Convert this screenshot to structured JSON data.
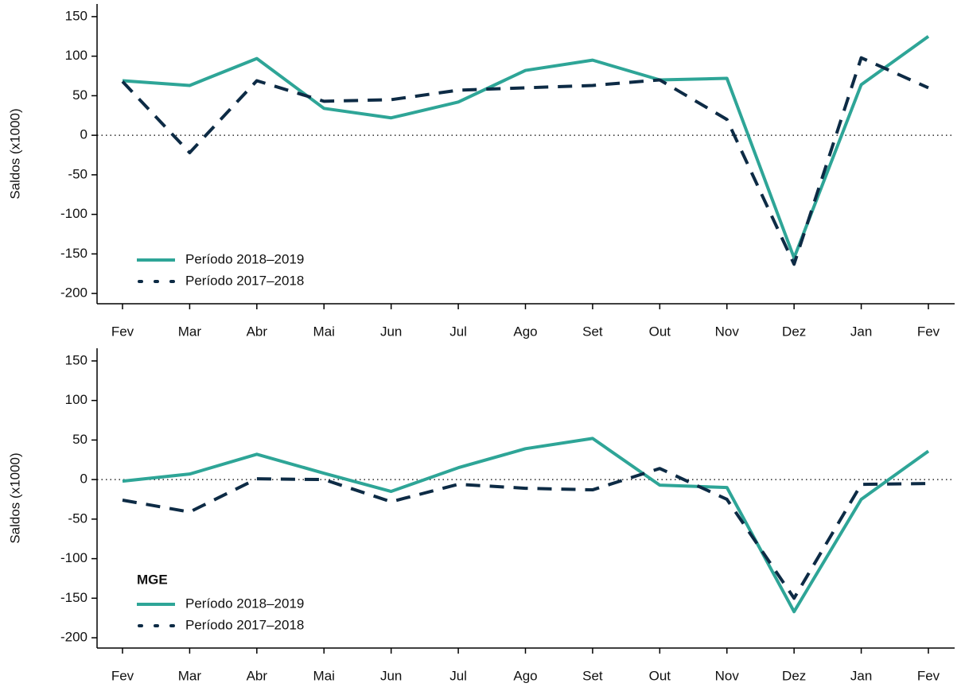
{
  "chart_data": [
    {
      "type": "line",
      "ylabel": "Saldos (x1000)",
      "categories": [
        "Fev",
        "Mar",
        "Abr",
        "Mai",
        "Jun",
        "Jul",
        "Ago",
        "Set",
        "Out",
        "Nov",
        "Dez",
        "Jan",
        "Fev"
      ],
      "series": [
        {
          "name": "Período 2018–2019",
          "color": "#2ea597",
          "style": "solid",
          "values": [
            69,
            63,
            97,
            34,
            22,
            42,
            82,
            95,
            70,
            72,
            -155,
            64,
            125
          ]
        },
        {
          "name": "Período 2017–2018",
          "color": "#0d2b45",
          "style": "dashed",
          "values": [
            68,
            -22,
            69,
            43,
            45,
            57,
            60,
            63,
            70,
            20,
            -163,
            98,
            60
          ]
        }
      ],
      "ylim": [
        -213,
        166
      ],
      "yticks": [
        -200,
        -150,
        -100,
        -50,
        0,
        50,
        100,
        150
      ],
      "zero_line": true
    },
    {
      "type": "line",
      "ylabel": "Saldos (x1000)",
      "legend_title": "MGE",
      "categories": [
        "Fev",
        "Mar",
        "Abr",
        "Mai",
        "Jun",
        "Jul",
        "Ago",
        "Set",
        "Out",
        "Nov",
        "Dez",
        "Jan",
        "Fev"
      ],
      "series": [
        {
          "name": "Período 2018–2019",
          "color": "#2ea597",
          "style": "solid",
          "values": [
            -2,
            7,
            32,
            8,
            -15,
            15,
            39,
            52,
            -7,
            -10,
            -167,
            -25,
            36
          ]
        },
        {
          "name": "Período 2017–2018",
          "color": "#0d2b45",
          "style": "dashed",
          "values": [
            -26,
            -41,
            1,
            0,
            -28,
            -6,
            -11,
            -13,
            14,
            -25,
            -150,
            -6,
            -5
          ]
        }
      ],
      "ylim": [
        -213,
        166
      ],
      "yticks": [
        -200,
        -150,
        -100,
        -50,
        0,
        50,
        100,
        150
      ],
      "zero_line": true
    }
  ]
}
